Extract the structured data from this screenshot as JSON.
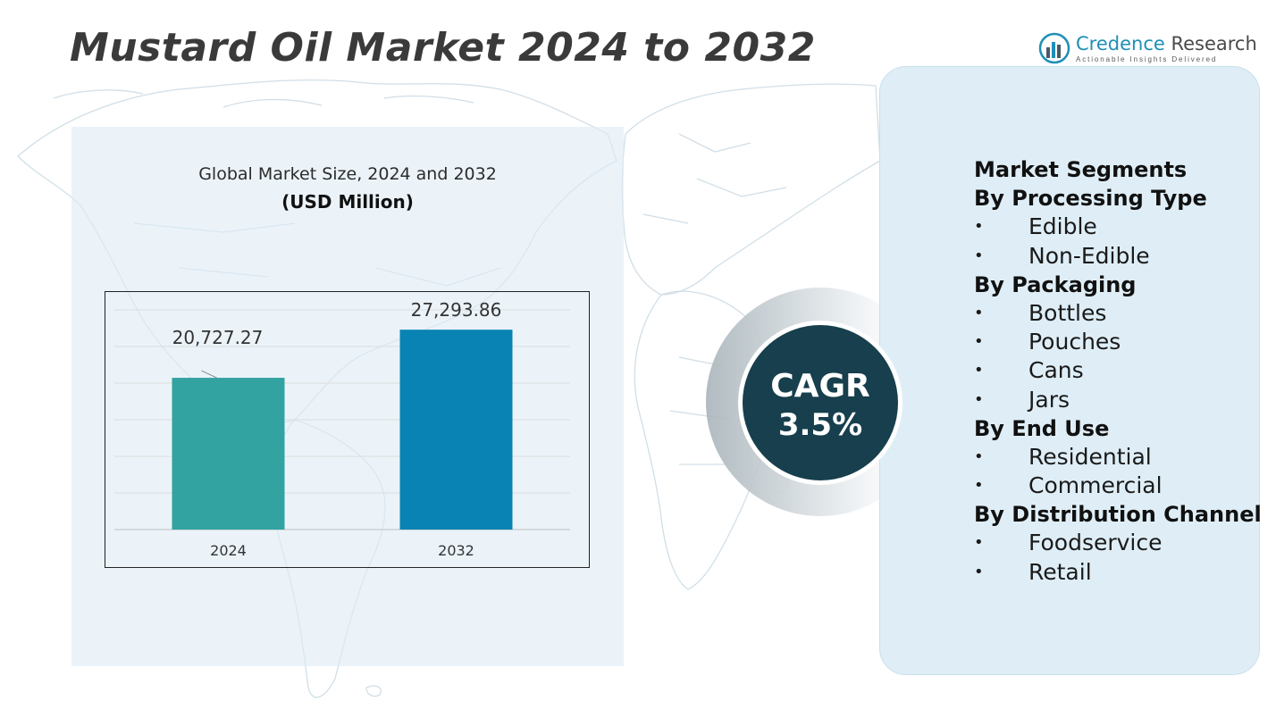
{
  "title": "Mustard Oil Market 2024 to 2032",
  "logo": {
    "brand_part1": "Credence",
    "brand_part2": " Research",
    "tagline": "Actionable Insights Delivered"
  },
  "chart_data": {
    "type": "bar",
    "title": "Global Market Size, 2024 and 2032",
    "unit": "(USD Million)",
    "categories": [
      "2024",
      "2032"
    ],
    "values": [
      20727.27,
      27293.86
    ],
    "value_labels": [
      "20,727.27",
      "27,293.86"
    ],
    "colors": [
      "#33a3a1",
      "#0883b3"
    ],
    "ylim": [
      0,
      30000
    ],
    "grid": true,
    "xlabel": "",
    "ylabel": ""
  },
  "cagr": {
    "label": "CAGR",
    "value": "3.5%",
    "circle_color": "#173f4d"
  },
  "segments": {
    "heading": "Market Segments",
    "groups": [
      {
        "title": "By Processing Type",
        "items": [
          "Edible",
          "Non-Edible"
        ]
      },
      {
        "title": "By Packaging",
        "items": [
          "Bottles",
          "Pouches",
          "Cans",
          "Jars"
        ]
      },
      {
        "title": "By End Use",
        "items": [
          "Residential",
          "Commercial"
        ]
      },
      {
        "title": "By Distribution Channel",
        "items": [
          "Foodservice",
          "Retail"
        ]
      }
    ],
    "bullet": "•"
  }
}
